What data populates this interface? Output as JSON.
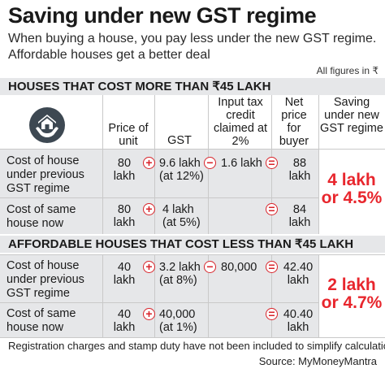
{
  "title": "Saving under new GST regime",
  "subtitle": "When buying a house, you pay less under the new GST regime. Affordable houses get a better deal",
  "note": "All figures in ₹",
  "section1": {
    "heading": "HOUSES THAT COST MORE THAN ₹45 LAKH",
    "rows": [
      {
        "label": "Cost of house under previous GST regime",
        "price": "80 lakh",
        "gst": "9.6 lakh (at 12%)",
        "itc": "1.6 lakh",
        "net": "88 lakh"
      },
      {
        "label": "Cost of same house now",
        "price": "80 lakh",
        "gst": "4 lakh (at 5%)",
        "itc": "",
        "net": "84 lakh"
      }
    ],
    "saving": "4 lakh or 4.5%"
  },
  "headers": {
    "price": "Price of unit",
    "gst": "GST",
    "itc": "Input tax credit claimed at 2%",
    "net": "Net price for buyer",
    "saving": "Saving under new GST regime"
  },
  "section2": {
    "heading": "AFFORDABLE HOUSES THAT COST LESS THAN ₹45 LAKH",
    "rows": [
      {
        "label": "Cost of house under previous GST regime",
        "price": "40 lakh",
        "gst": "3.2 lakh (at 8%)",
        "itc": "80,000",
        "net": "42.40 lakh"
      },
      {
        "label": "Cost of same house now",
        "price": "40 lakh",
        "gst": "40,000 (at 1%)",
        "itc": "",
        "net": "40.40 lakh"
      }
    ],
    "saving": "2 lakh or 4.7%"
  },
  "ops": {
    "plus": "+",
    "minus": "−",
    "equals": "="
  },
  "footer": "Registration charges and stamp duty have not been included to simplify calculation",
  "source": "Source: MyMoneyMantra",
  "colors": {
    "accent": "#e8262d",
    "band": "#e6e7e9",
    "logo": "#3d4852"
  },
  "icons": {
    "logo": "house-hands-icon"
  }
}
